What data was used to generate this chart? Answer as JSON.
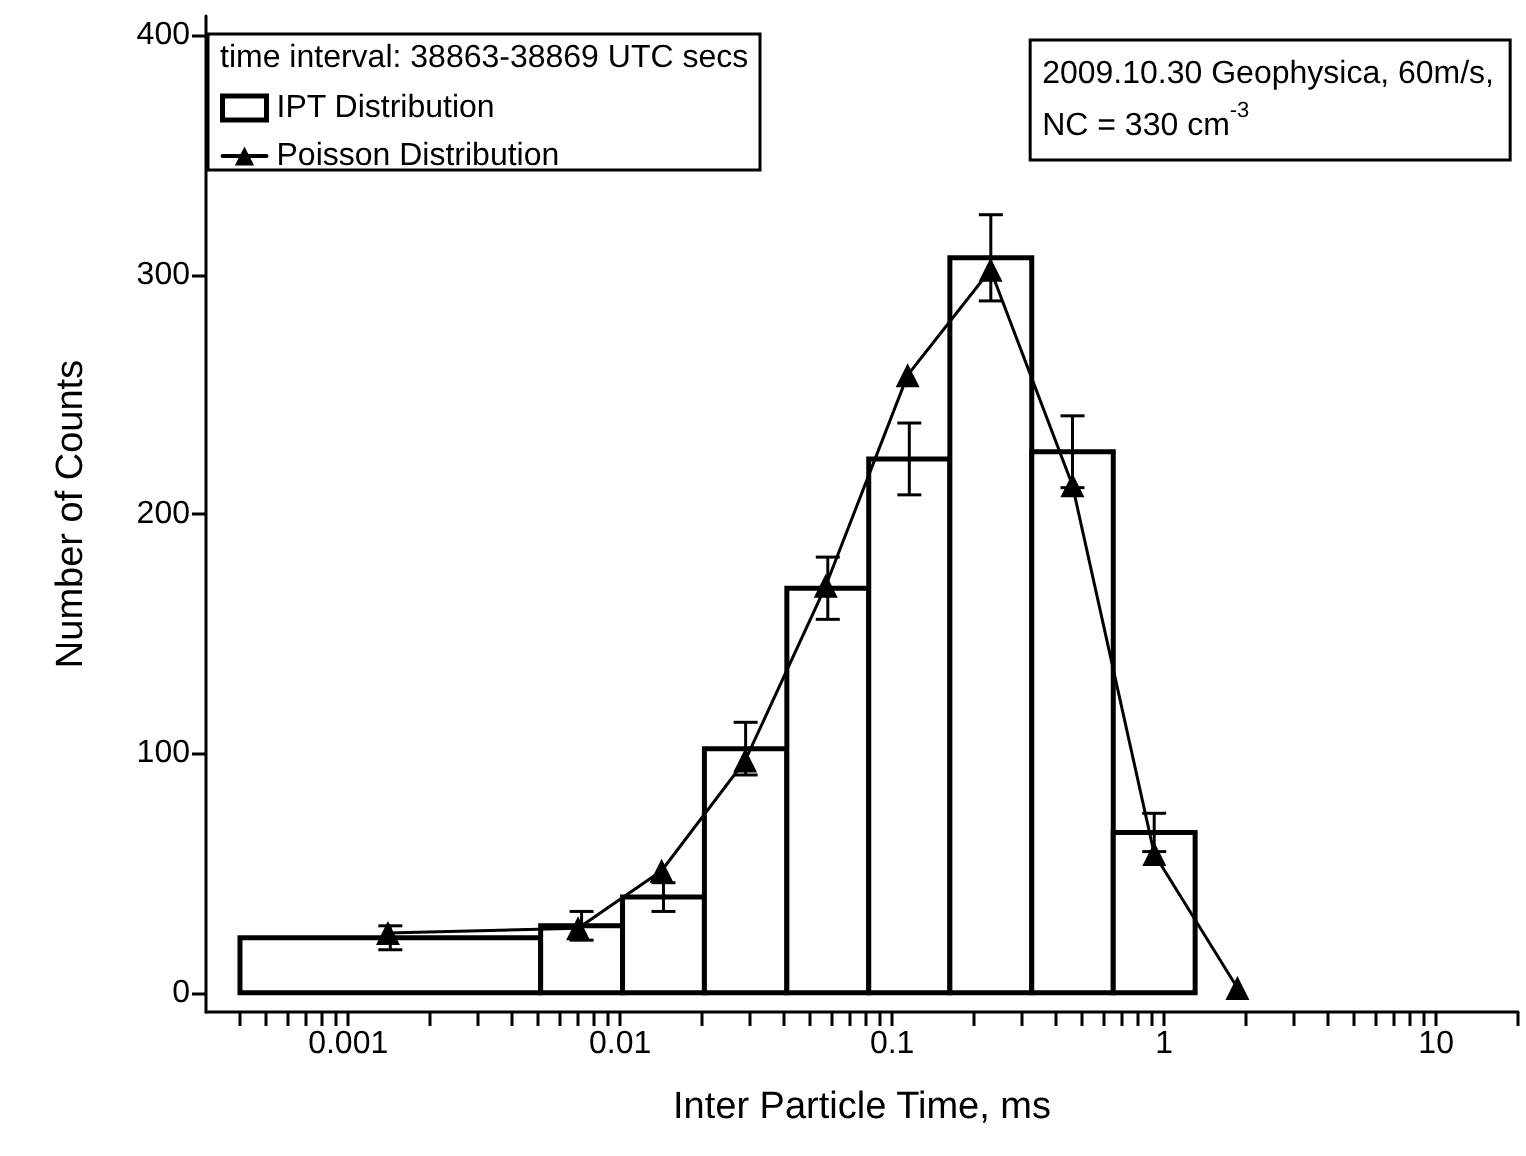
{
  "chart_data": {
    "type": "histogram",
    "xlabel": "Inter Particle Time, ms",
    "ylabel": "Number of Counts",
    "legend_title": "time interval: 38863-38869 UTC secs",
    "annotations": [
      "2009.10.30 Geophysica, 60m/s,",
      "NC = 330 cm$^{-3}$"
    ],
    "bins": [
      0.0004,
      0.0051,
      0.0102,
      0.0204,
      0.041,
      0.082,
      0.163,
      0.326,
      0.65,
      1.3
    ],
    "series": [
      {
        "name": "IPT Distribution",
        "color": "#000000",
        "values": [
          23,
          28,
          40,
          102,
          169,
          223,
          307,
          226,
          67
        ],
        "errors": [
          5,
          6,
          6,
          11,
          13,
          15,
          18,
          15,
          8
        ]
      },
      {
        "name": "Poisson Distribution",
        "type": "line",
        "color": "#000000",
        "x": [
          0.0014,
          0.007,
          0.0142,
          0.0288,
          0.057,
          0.114,
          0.23,
          0.46,
          0.92,
          1.86
        ],
        "values": [
          25,
          27,
          51,
          97,
          170,
          258,
          302,
          212,
          58,
          2
        ]
      }
    ],
    "xlim": [
      0.0003,
      20
    ],
    "ylim": [
      -8,
      408
    ],
    "xticks": [
      {
        "value": 0.0004,
        "label": null
      },
      {
        "value": 0.0005,
        "label": null
      },
      {
        "value": 0.0006,
        "label": null
      },
      {
        "value": 0.0007,
        "label": null
      },
      {
        "value": 0.0008,
        "label": null
      },
      {
        "value": 0.0009,
        "label": null
      },
      0.001,
      {
        "value": 0.002,
        "label": null
      },
      {
        "value": 0.003,
        "label": null
      },
      {
        "value": 0.004,
        "label": null
      },
      {
        "value": 0.005,
        "label": null
      },
      {
        "value": 0.006,
        "label": null
      },
      {
        "value": 0.007,
        "label": null
      },
      {
        "value": 0.008,
        "label": null
      },
      {
        "value": 0.009,
        "label": null
      },
      0.01,
      {
        "value": 0.02,
        "label": null
      },
      {
        "value": 0.03,
        "label": null
      },
      {
        "value": 0.04,
        "label": null
      },
      {
        "value": 0.05,
        "label": null
      },
      {
        "value": 0.06,
        "label": null
      },
      {
        "value": 0.07,
        "label": null
      },
      {
        "value": 0.08,
        "label": null
      },
      {
        "value": 0.09,
        "label": null
      },
      0.1,
      {
        "value": 0.2,
        "label": null
      },
      {
        "value": 0.3,
        "label": null
      },
      {
        "value": 0.4,
        "label": null
      },
      {
        "value": 0.5,
        "label": null
      },
      {
        "value": 0.6,
        "label": null
      },
      {
        "value": 0.7,
        "label": null
      },
      {
        "value": 0.8,
        "label": null
      },
      {
        "value": 0.9,
        "label": null
      },
      1,
      {
        "value": 2,
        "label": null
      },
      {
        "value": 3,
        "label": null
      },
      {
        "value": 4,
        "label": null
      },
      {
        "value": 5,
        "label": null
      },
      {
        "value": 6,
        "label": null
      },
      {
        "value": 7,
        "label": null
      },
      {
        "value": 8,
        "label": null
      },
      {
        "value": 9,
        "label": null
      },
      10,
      {
        "value": 20,
        "label": null
      }
    ],
    "yticks": [
      0,
      100,
      200,
      300,
      400
    ],
    "log": "x",
    "grid": false,
    "legend": "top left",
    "marker": "triangle",
    "line_style": "solid"
  }
}
